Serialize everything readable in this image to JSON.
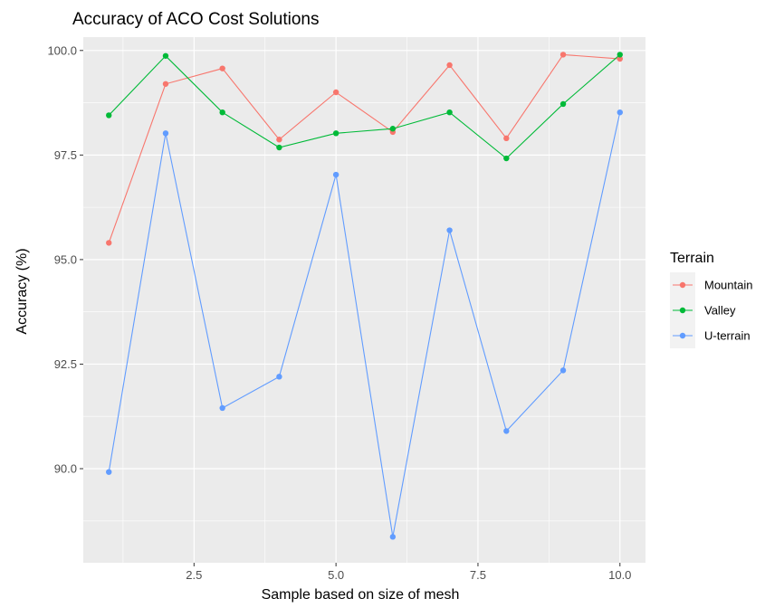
{
  "chart_data": {
    "type": "line",
    "title": "Accuracy of ACO Cost Solutions",
    "xlabel": "Sample based on size of mesh",
    "ylabel": "Accuracy (%)",
    "x": [
      1,
      2,
      3,
      4,
      5,
      6,
      7,
      8,
      9,
      10
    ],
    "xlim": [
      0.55,
      10.45
    ],
    "ylim": [
      87.75,
      100.32
    ],
    "x_ticks": [
      2.5,
      5.0,
      7.5,
      10.0
    ],
    "x_tick_labels": [
      "2.5",
      "5.0",
      "7.5",
      "10.0"
    ],
    "y_ticks": [
      90.0,
      92.5,
      95.0,
      97.5,
      100.0
    ],
    "y_tick_labels": [
      "90.0",
      "92.5",
      "95.0",
      "97.5",
      "100.0"
    ],
    "grid": true,
    "legend": {
      "title": "Terrain",
      "position": "right"
    },
    "series": [
      {
        "name": "Mountain",
        "color": "#F8766D",
        "values": [
          95.4,
          99.2,
          99.57,
          97.87,
          99.0,
          98.05,
          99.65,
          97.9,
          99.9,
          99.8
        ]
      },
      {
        "name": "Valley",
        "color": "#00BA38",
        "values": [
          98.45,
          99.87,
          98.52,
          97.68,
          98.02,
          98.13,
          98.52,
          97.42,
          98.72,
          99.9
        ]
      },
      {
        "name": "U-terrain",
        "color": "#619CFF",
        "values": [
          89.92,
          98.02,
          91.45,
          92.2,
          97.03,
          88.37,
          95.7,
          90.9,
          92.35,
          98.52
        ]
      }
    ]
  }
}
